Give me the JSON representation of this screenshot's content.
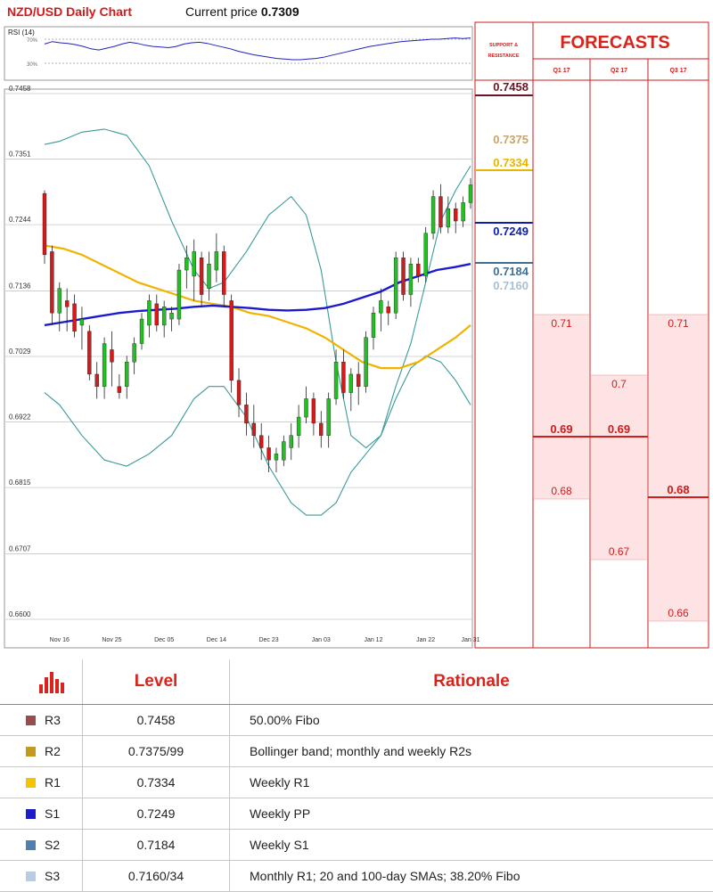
{
  "header": {
    "title": "NZD/USD Daily Chart",
    "price_label": "Current price",
    "price_value": "0.7309"
  },
  "rsi": {
    "label": "RSI (14)",
    "levels": [
      "70%",
      "30%"
    ],
    "values": [
      62,
      66,
      64,
      63,
      61,
      58,
      54,
      52,
      55,
      58,
      62,
      65,
      63,
      60,
      58,
      57,
      56,
      58,
      62,
      64,
      65,
      63,
      60,
      57,
      54,
      50,
      47,
      44,
      42,
      40,
      38,
      37,
      36,
      36,
      37,
      38,
      40,
      43,
      46,
      49,
      52,
      55,
      58,
      60,
      62,
      64,
      66,
      67,
      68,
      69,
      70,
      70,
      71,
      72,
      71,
      72
    ]
  },
  "sr_panel": {
    "title": "SUPPORT & RESISTANCE",
    "levels": [
      {
        "label": "R3",
        "value": "0.7458",
        "color": "#6d1424",
        "line": true
      },
      {
        "label": "R2",
        "value": "0.7375",
        "color": "#c9a46a",
        "line": false
      },
      {
        "label": "R1",
        "value": "0.7334",
        "color": "#e8b500",
        "line": true
      },
      {
        "label": "S1",
        "value": "0.7249",
        "color": "#0a1fb2",
        "line": true
      },
      {
        "label": "S2",
        "value": "0.7184",
        "color": "#3f6f93",
        "line": true
      },
      {
        "label": "S3",
        "value": "0.7160",
        "color": "#a8c0d4",
        "line": false
      }
    ]
  },
  "forecasts": {
    "title": "FORECASTS",
    "quarters": [
      {
        "name": "Q1 17",
        "low": "0.68",
        "mid": "0.69",
        "high": "0.71",
        "median_value": 0.69
      },
      {
        "name": "Q2 17",
        "low": "0.67",
        "mid": "0.69",
        "high": "0.7",
        "median_value": 0.69
      },
      {
        "name": "Q3 17",
        "low": "0.66",
        "mid": "0.68",
        "high": "0.71",
        "median_value": 0.68
      }
    ]
  },
  "chart_data": {
    "type": "candlestick",
    "title": "NZD/USD Daily Chart",
    "ylim": [
      0.66,
      0.7458
    ],
    "y_ticks": [
      "0.7458",
      "0.7351",
      "0.7244",
      "0.7136",
      "0.7029",
      "0.6922",
      "0.6815",
      "0.6707",
      "0.6600"
    ],
    "x_ticks": [
      {
        "label": "Nov 16",
        "index": 2
      },
      {
        "label": "Nov 25",
        "index": 9
      },
      {
        "label": "Dec 05",
        "index": 16
      },
      {
        "label": "Dec 14",
        "index": 23
      },
      {
        "label": "Dec 23",
        "index": 30
      },
      {
        "label": "Jan 03",
        "index": 37
      },
      {
        "label": "Jan 12",
        "index": 44
      },
      {
        "label": "Jan 22",
        "index": 51
      },
      {
        "label": "Jan 31",
        "index": 57
      }
    ],
    "candles": [
      [
        0.7295,
        0.73,
        0.718,
        0.7195
      ],
      [
        0.72,
        0.721,
        0.708,
        0.71
      ],
      [
        0.71,
        0.715,
        0.707,
        0.714
      ],
      [
        0.712,
        0.714,
        0.707,
        0.711
      ],
      [
        0.7115,
        0.713,
        0.706,
        0.707
      ],
      [
        0.708,
        0.711,
        0.704,
        0.709
      ],
      [
        0.707,
        0.708,
        0.699,
        0.7
      ],
      [
        0.7,
        0.702,
        0.696,
        0.698
      ],
      [
        0.698,
        0.706,
        0.696,
        0.705
      ],
      [
        0.704,
        0.707,
        0.698,
        0.702
      ],
      [
        0.698,
        0.7,
        0.696,
        0.697
      ],
      [
        0.698,
        0.703,
        0.696,
        0.702
      ],
      [
        0.702,
        0.706,
        0.7,
        0.705
      ],
      [
        0.705,
        0.71,
        0.704,
        0.709
      ],
      [
        0.708,
        0.713,
        0.706,
        0.712
      ],
      [
        0.7115,
        0.713,
        0.707,
        0.708
      ],
      [
        0.708,
        0.712,
        0.706,
        0.711
      ],
      [
        0.709,
        0.711,
        0.707,
        0.71
      ],
      [
        0.709,
        0.718,
        0.708,
        0.717
      ],
      [
        0.717,
        0.721,
        0.714,
        0.719
      ],
      [
        0.716,
        0.722,
        0.712,
        0.72
      ],
      [
        0.719,
        0.72,
        0.711,
        0.713
      ],
      [
        0.714,
        0.72,
        0.712,
        0.718
      ],
      [
        0.717,
        0.723,
        0.715,
        0.72
      ],
      [
        0.72,
        0.721,
        0.711,
        0.713
      ],
      [
        0.712,
        0.713,
        0.697,
        0.699
      ],
      [
        0.699,
        0.701,
        0.693,
        0.695
      ],
      [
        0.695,
        0.697,
        0.69,
        0.692
      ],
      [
        0.692,
        0.695,
        0.688,
        0.69
      ],
      [
        0.69,
        0.692,
        0.686,
        0.688
      ],
      [
        0.688,
        0.69,
        0.684,
        0.686
      ],
      [
        0.686,
        0.688,
        0.684,
        0.687
      ],
      [
        0.686,
        0.69,
        0.685,
        0.689
      ],
      [
        0.688,
        0.692,
        0.686,
        0.69
      ],
      [
        0.69,
        0.695,
        0.688,
        0.693
      ],
      [
        0.693,
        0.698,
        0.692,
        0.696
      ],
      [
        0.696,
        0.697,
        0.69,
        0.692
      ],
      [
        0.692,
        0.694,
        0.688,
        0.69
      ],
      [
        0.69,
        0.697,
        0.688,
        0.696
      ],
      [
        0.696,
        0.704,
        0.695,
        0.702
      ],
      [
        0.702,
        0.704,
        0.696,
        0.697
      ],
      [
        0.697,
        0.701,
        0.694,
        0.7
      ],
      [
        0.7,
        0.702,
        0.695,
        0.698
      ],
      [
        0.698,
        0.707,
        0.697,
        0.706
      ],
      [
        0.706,
        0.711,
        0.704,
        0.71
      ],
      [
        0.71,
        0.714,
        0.707,
        0.712
      ],
      [
        0.711,
        0.712,
        0.708,
        0.71
      ],
      [
        0.71,
        0.72,
        0.709,
        0.719
      ],
      [
        0.719,
        0.72,
        0.712,
        0.713
      ],
      [
        0.713,
        0.719,
        0.711,
        0.718
      ],
      [
        0.718,
        0.719,
        0.715,
        0.716
      ],
      [
        0.716,
        0.724,
        0.715,
        0.723
      ],
      [
        0.723,
        0.73,
        0.722,
        0.729
      ],
      [
        0.729,
        0.731,
        0.723,
        0.724
      ],
      [
        0.724,
        0.729,
        0.723,
        0.727
      ],
      [
        0.727,
        0.728,
        0.723,
        0.725
      ],
      [
        0.725,
        0.729,
        0.724,
        0.728
      ],
      [
        0.728,
        0.732,
        0.727,
        0.7309
      ]
    ],
    "bollinger_upper": [
      0.7375,
      0.738,
      0.7395,
      0.74,
      0.739,
      0.734,
      0.725,
      0.717,
      0.714,
      0.715,
      0.72,
      0.726,
      0.729,
      0.726,
      0.717,
      0.702,
      0.69,
      0.688,
      0.69,
      0.698,
      0.705,
      0.715,
      0.725,
      0.73,
      0.734
    ],
    "bollinger_lower": [
      0.697,
      0.695,
      0.69,
      0.686,
      0.685,
      0.687,
      0.69,
      0.696,
      0.698,
      0.698,
      0.693,
      0.685,
      0.679,
      0.677,
      0.677,
      0.679,
      0.684,
      0.687,
      0.69,
      0.696,
      0.701,
      0.703,
      0.702,
      0.699,
      0.695
    ],
    "bollinger_x": [
      0,
      2,
      5,
      8,
      11,
      14,
      17,
      20,
      22,
      24,
      27,
      30,
      33,
      35,
      37,
      39,
      41,
      43,
      45,
      47,
      49,
      51,
      53,
      55,
      57
    ],
    "sma_yellow": [
      0.721,
      0.7205,
      0.7195,
      0.718,
      0.7165,
      0.715,
      0.714,
      0.713,
      0.712,
      0.7115,
      0.711,
      0.71,
      0.7095,
      0.7085,
      0.7075,
      0.706,
      0.704,
      0.702,
      0.701,
      0.701,
      0.702,
      0.704,
      0.706,
      0.708
    ],
    "sma_blue": [
      0.708,
      0.7085,
      0.709,
      0.7095,
      0.71,
      0.7103,
      0.7105,
      0.7107,
      0.711,
      0.7112,
      0.711,
      0.7108,
      0.7105,
      0.7104,
      0.7105,
      0.7108,
      0.7115,
      0.7125,
      0.7135,
      0.715,
      0.716,
      0.717,
      0.7175,
      0.718
    ],
    "sma_x": [
      0,
      2.5,
      5,
      7.5,
      10,
      12.5,
      15,
      17.5,
      20,
      22.5,
      25,
      27.5,
      30,
      32.5,
      35,
      37.5,
      40,
      42.5,
      45,
      47.5,
      50,
      52.5,
      55,
      57
    ]
  },
  "level_table": {
    "headers": {
      "level": "Level",
      "rationale": "Rationale"
    },
    "rows": [
      {
        "label": "R3",
        "level": "0.7458",
        "rationale": "50.00% Fibo",
        "color": "#984c4c"
      },
      {
        "label": "R2",
        "level": "0.7375/99",
        "rationale": "Bollinger band; monthly and weekly R2s",
        "color": "#c39a1e"
      },
      {
        "label": "R1",
        "level": "0.7334",
        "rationale": "Weekly R1",
        "color": "#f5c400"
      },
      {
        "label": "S1",
        "level": "0.7249",
        "rationale": "Weekly PP",
        "color": "#1c1cc8"
      },
      {
        "label": "S2",
        "level": "0.7184",
        "rationale": "Weekly S1",
        "color": "#4f7fb0"
      },
      {
        "label": "S3",
        "level": "0.7160/34",
        "rationale": "Monthly R1; 20 and 100-day SMAs; 38.20% Fibo",
        "color": "#b9cde2"
      }
    ]
  },
  "colors": {
    "accent_red": "#d8241b",
    "grid": "#c8c8c8",
    "bull": "#22c022",
    "bear": "#d21b1b",
    "forecast_fill": "#fde3e3"
  }
}
